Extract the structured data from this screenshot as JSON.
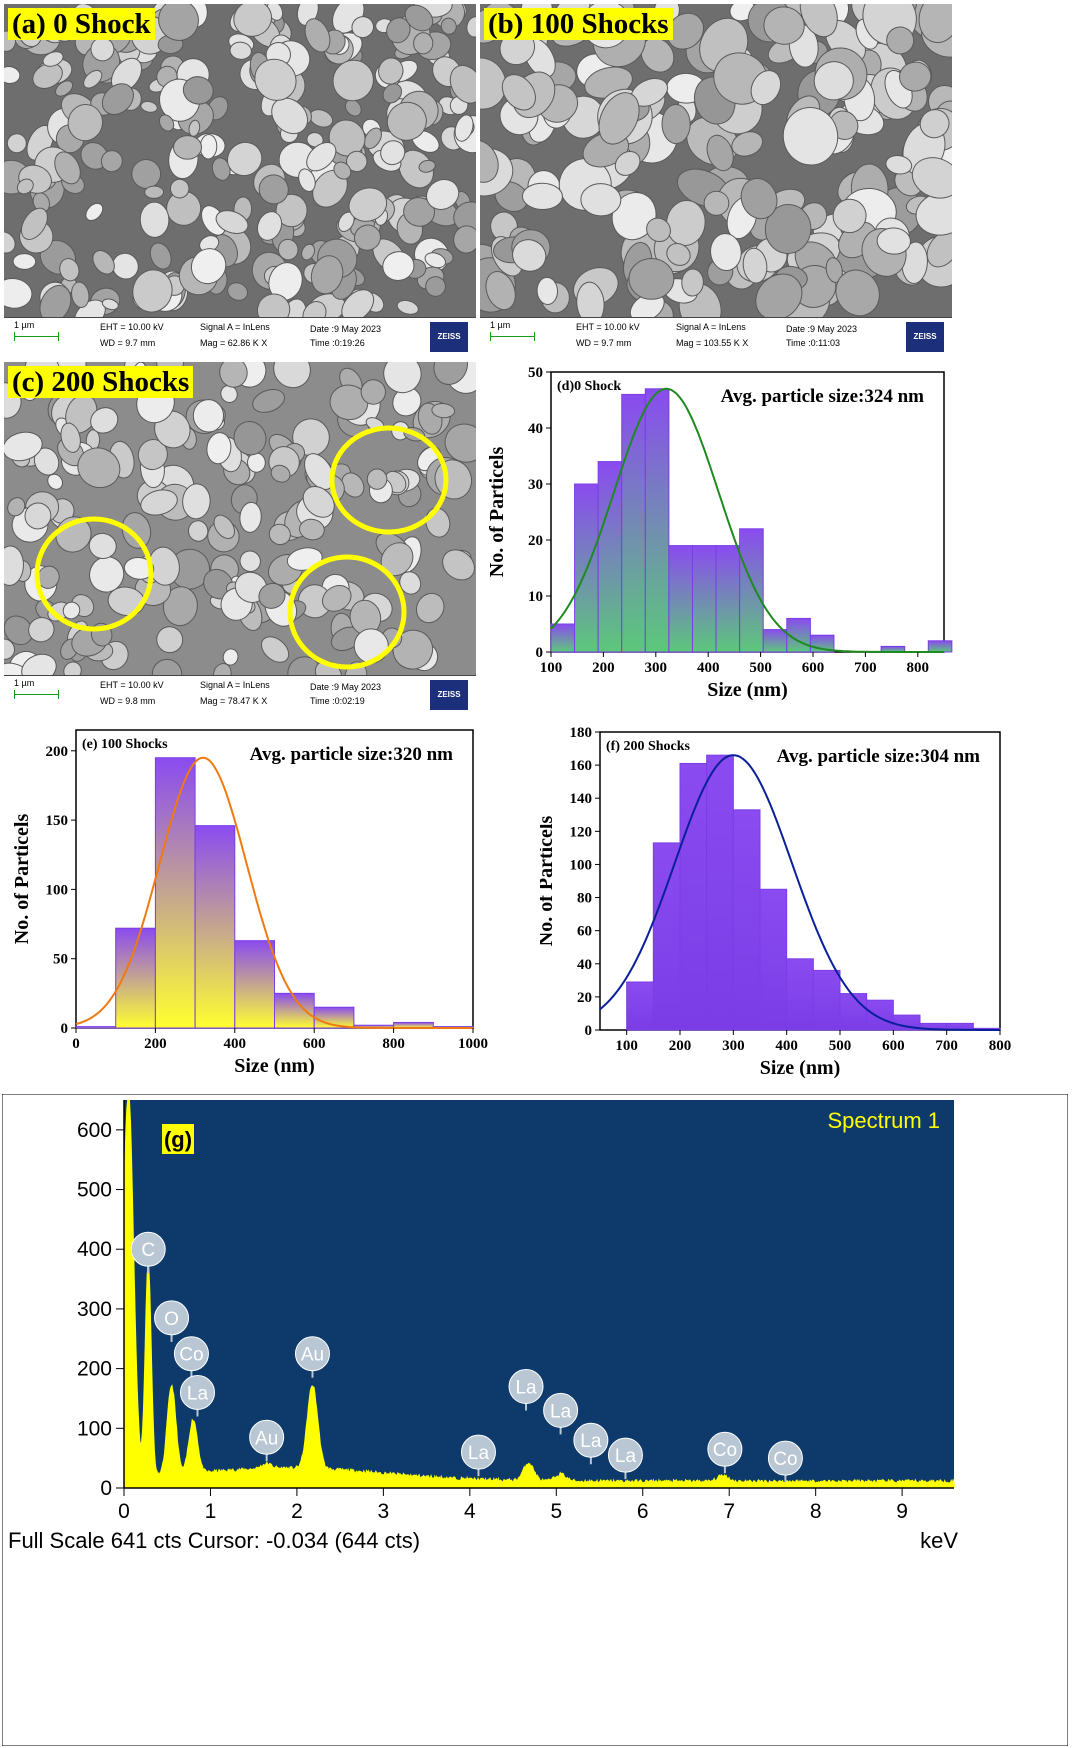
{
  "sem_panels": [
    {
      "label": "(a) 0 Shock",
      "scale": "1 µm",
      "eht": "EHT = 10.00 kV",
      "wd": "WD =  9.7 mm",
      "signal": "Signal A = InLens",
      "mag": "Mag =  62.86 K X",
      "date": "Date :9 May 2023",
      "time": "Time :0:19:26",
      "brand": "ZEISS"
    },
    {
      "label": "(b) 100 Shocks",
      "scale": "1 µm",
      "eht": "EHT = 10.00 kV",
      "wd": "WD =  9.7 mm",
      "signal": "Signal A = InLens",
      "mag": "Mag = 103.55 K X",
      "date": "Date :9 May 2023",
      "time": "Time :0:11:03",
      "brand": "ZEISS"
    },
    {
      "label": "(c) 200 Shocks",
      "scale": "1 µm",
      "eht": "EHT = 10.00 kV",
      "wd": "WD =  9.8 mm",
      "signal": "Signal A = InLens",
      "mag": "Mag =  78.47 K X",
      "date": "Date :9 May 2023",
      "time": "Time :0:02:19",
      "brand": "ZEISS"
    }
  ],
  "chart_data": [
    {
      "id": "d",
      "type": "bar",
      "panel_label": "(d)0 Shock",
      "annotation": "Avg. particle size:324 nm",
      "xlabel": "Size (nm)",
      "ylabel": "No. of Particels",
      "xlim": [
        100,
        850
      ],
      "ylim": [
        0,
        50
      ],
      "xticks": [
        100,
        200,
        300,
        400,
        500,
        600,
        700,
        800
      ],
      "yticks": [
        0,
        10,
        20,
        30,
        40,
        50
      ],
      "bin_width": 45,
      "bins": [
        100,
        145,
        190,
        235,
        280,
        325,
        370,
        415,
        460,
        505,
        550,
        595,
        640,
        685,
        730,
        775,
        820
      ],
      "values": [
        5,
        30,
        34,
        46,
        47,
        19,
        19,
        19,
        22,
        4,
        6,
        3,
        0,
        0,
        1,
        0,
        2
      ],
      "fit": {
        "mean": 320,
        "sigma": 100,
        "peak": 47
      },
      "colors": {
        "bar_top": "#8a4bf0",
        "bar_bottom": "#5cc87a",
        "fit": "#1f8a1f"
      }
    },
    {
      "id": "e",
      "type": "bar",
      "panel_label": "(e) 100 Shocks",
      "annotation": "Avg. particle size:320 nm",
      "xlabel": "Size (nm)",
      "ylabel": "No. of Particels",
      "xlim": [
        0,
        1000
      ],
      "ylim": [
        0,
        215
      ],
      "xticks": [
        0,
        200,
        400,
        600,
        800,
        1000
      ],
      "yticks": [
        0,
        50,
        100,
        150,
        200
      ],
      "bin_width": 100,
      "bins": [
        0,
        100,
        200,
        300,
        400,
        500,
        600,
        700,
        800,
        900
      ],
      "values": [
        1,
        72,
        195,
        146,
        63,
        25,
        15,
        2,
        4,
        1
      ],
      "fit": {
        "mean": 320,
        "sigma": 110,
        "peak": 195
      },
      "colors": {
        "bar_top": "#8a4bf0",
        "bar_bottom": "#ffff30",
        "fit": "#f07a10"
      }
    },
    {
      "id": "f",
      "type": "bar",
      "panel_label": "(f) 200 Shocks",
      "annotation": "Avg. particle size:304 nm",
      "xlabel": "Size (nm)",
      "ylabel": "No. of Particels",
      "xlim": [
        50,
        800
      ],
      "ylim": [
        0,
        180
      ],
      "xticks": [
        100,
        200,
        300,
        400,
        500,
        600,
        700,
        800
      ],
      "yticks": [
        0,
        20,
        40,
        60,
        80,
        100,
        120,
        140,
        160,
        180
      ],
      "bin_width": 50,
      "bins": [
        100,
        150,
        200,
        250,
        300,
        350,
        400,
        450,
        500,
        550,
        600,
        650,
        700,
        750
      ],
      "values": [
        29,
        113,
        161,
        166,
        133,
        85,
        43,
        36,
        22,
        18,
        9,
        4,
        4,
        1
      ],
      "fit": {
        "mean": 300,
        "sigma": 110,
        "peak": 166
      },
      "colors": {
        "bar_top": "#8a4bf0",
        "bar_bottom": "#7a3de6",
        "fit": "#0a1f9a"
      }
    },
    {
      "id": "g",
      "type": "line",
      "panel_label": "(g)",
      "title": "Spectrum 1",
      "xlabel": "keV",
      "ylabel": "",
      "xlim": [
        0,
        9.6
      ],
      "ylim": [
        0,
        650
      ],
      "xticks": [
        0,
        1,
        2,
        3,
        4,
        5,
        6,
        7,
        8,
        9
      ],
      "yticks": [
        0,
        100,
        200,
        300,
        400,
        500,
        600
      ],
      "peaks": [
        {
          "center": 0.05,
          "height": 650,
          "width": 0.06
        },
        {
          "center": 0.28,
          "height": 360,
          "width": 0.035
        },
        {
          "center": 0.55,
          "height": 150,
          "width": 0.05
        },
        {
          "center": 0.8,
          "height": 90,
          "width": 0.05
        },
        {
          "center": 1.65,
          "height": 8,
          "width": 0.06
        },
        {
          "center": 2.18,
          "height": 140,
          "width": 0.06
        },
        {
          "center": 4.68,
          "height": 30,
          "width": 0.06
        },
        {
          "center": 5.05,
          "height": 12,
          "width": 0.06
        },
        {
          "center": 6.93,
          "height": 10,
          "width": 0.06
        }
      ],
      "element_labels": [
        {
          "text": "C",
          "x": 0.28,
          "y": 400
        },
        {
          "text": "O",
          "x": 0.55,
          "y": 285
        },
        {
          "text": "Co",
          "x": 0.78,
          "y": 225
        },
        {
          "text": "La",
          "x": 0.85,
          "y": 160
        },
        {
          "text": "Au",
          "x": 1.65,
          "y": 85
        },
        {
          "text": "Au",
          "x": 2.18,
          "y": 225
        },
        {
          "text": "La",
          "x": 4.1,
          "y": 60
        },
        {
          "text": "La",
          "x": 4.65,
          "y": 170
        },
        {
          "text": "La",
          "x": 5.05,
          "y": 130
        },
        {
          "text": "La",
          "x": 5.4,
          "y": 80
        },
        {
          "text": "La",
          "x": 5.8,
          "y": 55
        },
        {
          "text": "Co",
          "x": 6.95,
          "y": 65
        },
        {
          "text": "Co",
          "x": 7.65,
          "y": 50
        }
      ],
      "footer": "Full Scale 641 cts Cursor: -0.034  (644 cts)",
      "colors": {
        "background": "#0d3a6b",
        "spectrum": "#ffff00",
        "title": "#ffff00",
        "marker": "#b9c6d3"
      }
    }
  ]
}
